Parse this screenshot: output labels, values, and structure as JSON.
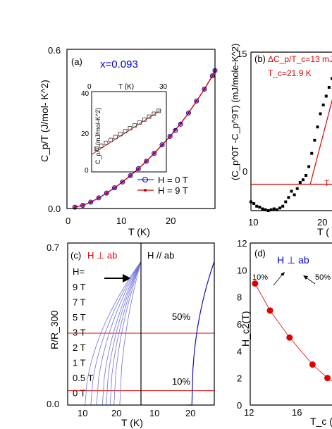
{
  "chart_data": [
    {
      "panel": "(a)",
      "type": "scatter",
      "annotation": "x=0.093",
      "xlabel": "T (K)",
      "ylabel": "C_p/T (J/mol- K^2)",
      "xlim": [
        0,
        28
      ],
      "ylim": [
        0,
        0.6
      ],
      "xticks": [
        "0",
        "10",
        "20"
      ],
      "yticks": [
        "0.0",
        "0.6"
      ],
      "series": [
        {
          "name": "H = 0 T",
          "color": "#0000cc",
          "marker": "open-circle",
          "x": [
            1.5,
            3,
            4.5,
            6,
            7.5,
            9,
            10.5,
            12,
            13.5,
            15,
            16.5,
            18,
            19.5,
            20.5,
            21.5,
            23,
            24.5,
            26,
            27.5,
            28
          ],
          "y": [
            0.005,
            0.012,
            0.024,
            0.04,
            0.058,
            0.078,
            0.1,
            0.124,
            0.15,
            0.178,
            0.208,
            0.24,
            0.272,
            0.294,
            0.318,
            0.36,
            0.405,
            0.45,
            0.5,
            0.52
          ]
        },
        {
          "name": "H = 9 T",
          "color": "#cc0000",
          "marker": "dot-line",
          "x": [
            1.5,
            3,
            4.5,
            6,
            7.5,
            9,
            10.5,
            12,
            13.5,
            15,
            16.5,
            18,
            19.5,
            20.5,
            21.5,
            23,
            24.5,
            26,
            27.5,
            28
          ],
          "y": [
            0.005,
            0.012,
            0.024,
            0.04,
            0.058,
            0.078,
            0.1,
            0.124,
            0.15,
            0.178,
            0.208,
            0.24,
            0.272,
            0.296,
            0.32,
            0.36,
            0.405,
            0.45,
            0.5,
            0.52
          ]
        }
      ],
      "inset": {
        "xlabel": "T (K)",
        "ylabel": "C_p/T (mJ/mol-K^2)",
        "xlim": [
          0,
          30
        ],
        "ylim": [
          0,
          40
        ],
        "xticks": [
          "0",
          "30"
        ],
        "yticks": [
          "0",
          "20",
          "40"
        ],
        "x": [
          2,
          4,
          6,
          8,
          10,
          12,
          14,
          16,
          18,
          20,
          22,
          24,
          26,
          28
        ],
        "y": [
          12,
          13.5,
          15,
          16.5,
          18,
          19.5,
          21,
          22.5,
          24,
          25.5,
          27,
          28.5,
          30,
          31.5
        ],
        "fit": [
          [
            0,
            9
          ],
          [
            29,
            32
          ]
        ]
      }
    },
    {
      "panel": "(b)",
      "type": "scatter",
      "annotation_1": "ΔC_p/T_c=13 mJ",
      "annotation_2": "T_c=21.9 K",
      "annotation_3": "T",
      "xlabel": "T (",
      "ylabel": "(C_p^0T -C_p^9T) (mJ/mole-K^2)",
      "xlim": [
        10,
        25
      ],
      "ylim": [
        -3,
        15
      ],
      "xticks": [
        "10",
        "20"
      ],
      "yticks": [
        "0",
        "15"
      ],
      "series": [
        {
          "name": "",
          "color": "#000000",
          "marker": "square",
          "x": [
            10,
            10.4,
            10.8,
            11.2,
            11.6,
            12,
            12.4,
            12.8,
            13.2,
            13.6,
            14,
            14.4,
            14.8,
            15.2,
            15.6,
            16,
            16.4,
            16.8,
            17.2,
            17.6,
            18,
            18.4,
            18.8,
            19.2,
            19.6,
            20,
            20.4,
            20.8,
            21.2,
            21.6,
            22
          ],
          "y": [
            -2,
            -2.2,
            -2.5,
            -2.6,
            -2.8,
            -2.9,
            -3,
            -2.9,
            -2.8,
            -2.9,
            -2.7,
            -2.5,
            -2,
            -1.5,
            -0.8,
            -1.2,
            -0.5,
            0.2,
            0.5,
            1,
            2,
            3.5,
            5,
            6.5,
            8,
            9,
            10,
            11,
            12,
            12.5,
            13
          ]
        }
      ],
      "fit_line": [
        [
          18.2,
          0
        ],
        [
          22,
          12
        ]
      ],
      "hline_y": 0
    },
    {
      "panel": "(c)",
      "type": "line",
      "label_left": "H ⊥ ab",
      "label_right": "H // ab",
      "legend_title": "H=",
      "fields": [
        "9 T",
        "7 T",
        "5 T",
        "3 T",
        "2 T",
        "1 T",
        "0.5 T",
        "0 T"
      ],
      "xlabel": "T (K)",
      "ylabel": "R/R_300",
      "ylim": [
        0,
        0.7
      ],
      "left_xticks": [
        "10",
        "20"
      ],
      "right_xticks": [
        "10",
        "20"
      ],
      "yticks": [
        "0.0",
        "0.7"
      ],
      "hlines": [
        0.5,
        0.1
      ],
      "hline_labels": [
        "50%",
        "10%"
      ],
      "left_curves_Tc": [
        12.5,
        14,
        15.5,
        17,
        18,
        19,
        20,
        21.5
      ],
      "right_curve_Tc": 21.2
    },
    {
      "panel": "(d)",
      "type": "scatter",
      "label": "H ⊥ ab",
      "annotations": [
        "10%",
        "50%"
      ],
      "xlabel": "T_c (K",
      "ylabel": "H_c2(T)",
      "xlim": [
        12,
        22
      ],
      "ylim": [
        0,
        12
      ],
      "xticks": [
        "12",
        "16"
      ],
      "yticks": [
        "0",
        "2",
        "4",
        "6",
        "8",
        "10",
        "12"
      ],
      "series": [
        {
          "name": "",
          "color": "#e00000",
          "marker": "filled-circle",
          "x": [
            12.3,
            13.6,
            15.3,
            17.3,
            18.6
          ],
          "y": [
            9,
            7,
            5,
            3,
            2
          ]
        }
      ]
    }
  ]
}
